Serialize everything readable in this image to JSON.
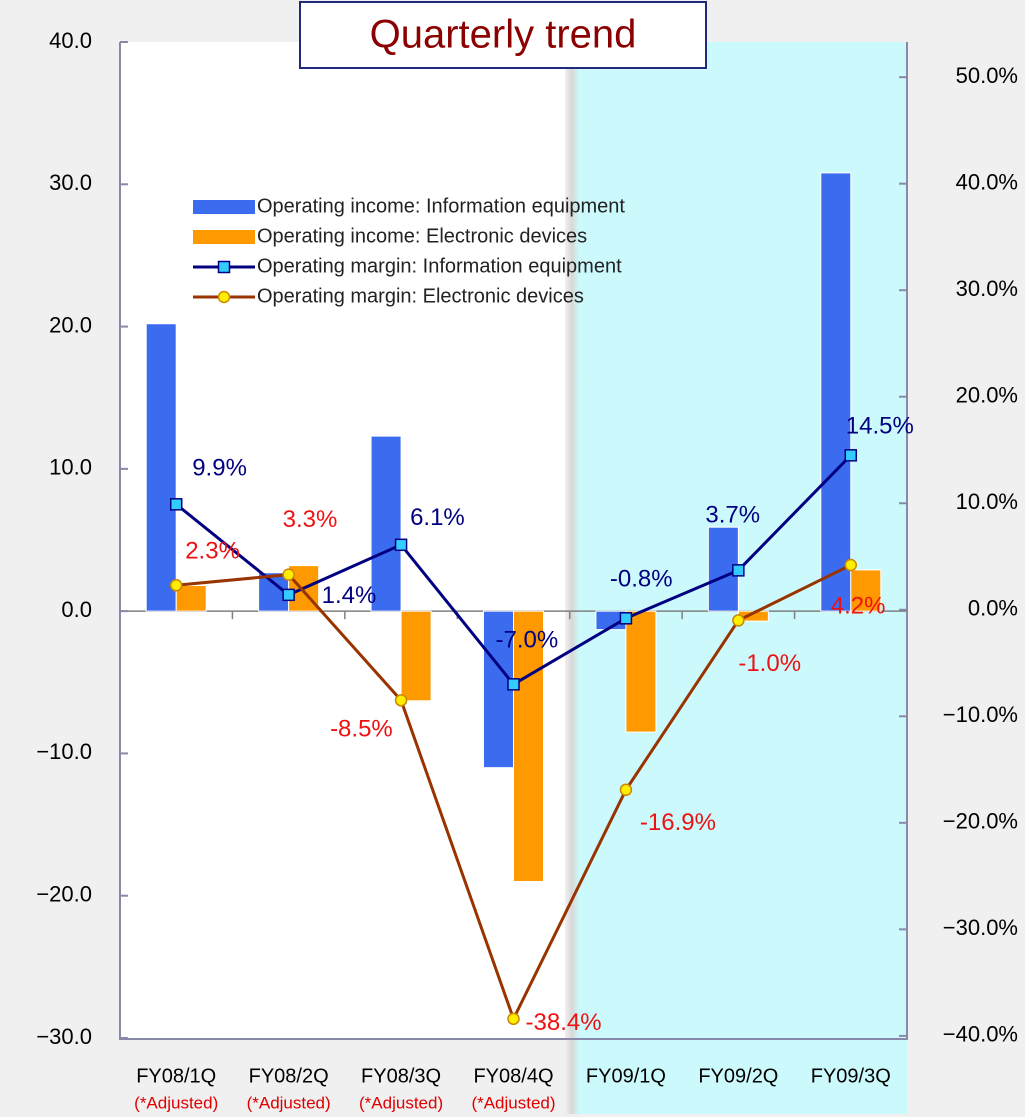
{
  "chart_data": {
    "type": "bar_line",
    "title": "Quarterly trend",
    "categories": [
      "FY08/1Q",
      "FY08/2Q",
      "FY08/3Q",
      "FY08/4Q",
      "FY09/1Q",
      "FY09/2Q",
      "FY09/3Q"
    ],
    "category_notes": [
      "(*Adjusted)",
      "(*Adjusted)",
      "(*Adjusted)",
      "(*Adjusted)"
    ],
    "ylim": [
      -30,
      40
    ],
    "yticks": [
      {
        "value": -30,
        "label": "−30.0"
      },
      {
        "value": -20,
        "label": "−20.0"
      },
      {
        "value": -10,
        "label": "−10.0"
      },
      {
        "value": 0,
        "label": "0.0"
      },
      {
        "value": 10,
        "label": "10.0"
      },
      {
        "value": 20,
        "label": "20.0"
      },
      {
        "value": 30,
        "label": "30.0"
      },
      {
        "value": 40,
        "label": "40.0"
      }
    ],
    "y2lim": [
      -40.2,
      53.3
    ],
    "y2ticks": [
      {
        "value": -40,
        "label": "−40.0%"
      },
      {
        "value": -30,
        "label": "−30.0%"
      },
      {
        "value": -20,
        "label": "−20.0%"
      },
      {
        "value": -10,
        "label": "−10.0%"
      },
      {
        "value": 0,
        "label": "0.0%"
      },
      {
        "value": 10,
        "label": "10.0%"
      },
      {
        "value": 20,
        "label": "20.0%"
      },
      {
        "value": 30,
        "label": "30.0%"
      },
      {
        "value": 40,
        "label": "40.0%"
      },
      {
        "value": 50,
        "label": "50.0%"
      }
    ],
    "grid": false,
    "series": [
      {
        "name": "Operating income: Information equipment",
        "type": "bar",
        "color": "#3b6cf0",
        "values": [
          20.2,
          2.7,
          12.3,
          -11.0,
          -1.3,
          5.9,
          30.8
        ]
      },
      {
        "name": "Operating income: Electronic devices",
        "type": "bar",
        "color": "#ff9900",
        "values": [
          1.8,
          3.2,
          -6.3,
          -19.0,
          -8.5,
          -0.7,
          2.9
        ]
      },
      {
        "name": "Operating margin: Information equipment",
        "type": "line",
        "axis": "y2",
        "color": "#000080",
        "marker_color": "#33ccff",
        "label_color": "#000080",
        "values": [
          9.9,
          1.4,
          6.1,
          -7.0,
          -0.8,
          3.7,
          14.5
        ],
        "value_labels": [
          "9.9%",
          "1.4%",
          "6.1%",
          "-7.0%",
          "-0.8%",
          "3.7%",
          "14.5%"
        ]
      },
      {
        "name": "Operating margin: Electronic devices",
        "type": "line",
        "axis": "y2",
        "color": "#993300",
        "marker_color": "#ffee00",
        "label_color": "#ee1111",
        "values": [
          2.3,
          3.3,
          -8.5,
          -38.4,
          -16.9,
          -1.0,
          4.2
        ],
        "value_labels": [
          "2.3%",
          "3.3%",
          "-8.5%",
          "-38.4%",
          "-16.9%",
          "-1.0%",
          "4.2%"
        ]
      }
    ]
  }
}
